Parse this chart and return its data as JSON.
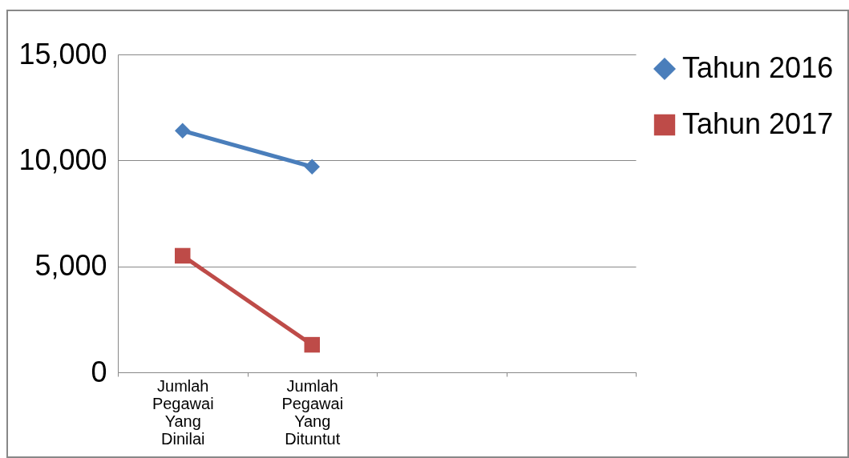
{
  "chart_data": {
    "type": "line",
    "categories": [
      "Jumlah Pegawai Yang Dinilai",
      "Jumlah Pegawai Yang Dituntut",
      null,
      null
    ],
    "series": [
      {
        "name": "Tahun 2016",
        "color": "#4a7ebb",
        "marker": "diamond",
        "values": [
          11400,
          9700,
          null,
          null
        ]
      },
      {
        "name": "Tahun 2017",
        "color": "#be4b48",
        "marker": "square",
        "values": [
          5500,
          1300,
          null,
          null
        ]
      }
    ],
    "ylim": [
      0,
      15000
    ],
    "yticks": [
      0,
      {
        "value": 5000,
        "label": "5,000"
      },
      {
        "value": 10000,
        "label": "10,000"
      },
      {
        "value": 15000,
        "label": "15,000"
      }
    ],
    "grid": "y",
    "legend": "right"
  }
}
